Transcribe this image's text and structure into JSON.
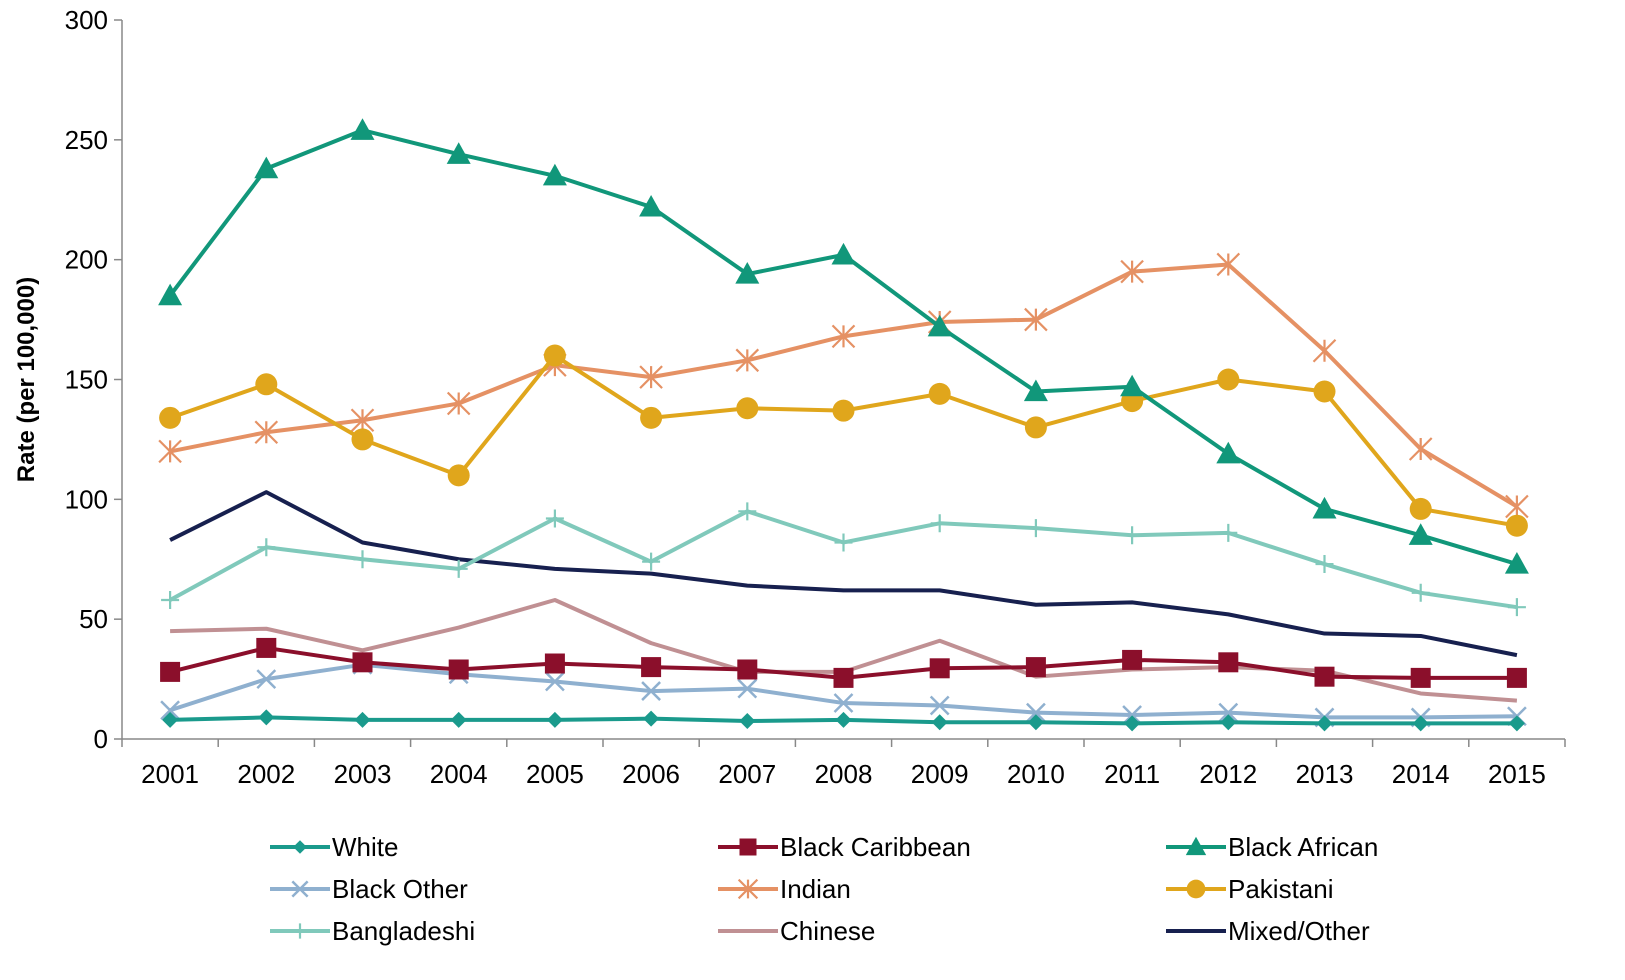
{
  "chart_data": {
    "type": "line",
    "title": "",
    "xlabel": "",
    "ylabel": "Rate (per 100,000)",
    "ylim": [
      0,
      300
    ],
    "yticks": [
      0,
      50,
      100,
      150,
      200,
      250,
      300
    ],
    "grid": false,
    "legend_position": "bottom",
    "categories": [
      "2001",
      "2002",
      "2003",
      "2004",
      "2005",
      "2006",
      "2007",
      "2008",
      "2009",
      "2010",
      "2011",
      "2012",
      "2013",
      "2014",
      "2015"
    ],
    "series": [
      {
        "name": "White",
        "color": "#1a9a8c",
        "marker": "diamond",
        "values": [
          8,
          9,
          8,
          8,
          8,
          8.5,
          7.5,
          8,
          7,
          7,
          6.5,
          7,
          6.5,
          6.5,
          6.5
        ]
      },
      {
        "name": "Black Caribbean",
        "color": "#8b0f2b",
        "marker": "square",
        "values": [
          28,
          38,
          32,
          29,
          31.5,
          30,
          29,
          25.5,
          29.5,
          30,
          33,
          32,
          26,
          25.5,
          25.5
        ]
      },
      {
        "name": "Black African",
        "color": "#11977a",
        "marker": "triangle",
        "values": [
          185,
          238,
          254,
          244,
          235,
          222,
          194,
          202,
          172,
          145,
          147,
          119,
          96,
          85,
          73
        ]
      },
      {
        "name": "Black Other",
        "color": "#8fb0cf",
        "marker": "x",
        "values": [
          12,
          25,
          31,
          27,
          24,
          20,
          21,
          15,
          14,
          11,
          10,
          11,
          9,
          9,
          9.5
        ]
      },
      {
        "name": "Indian",
        "color": "#e59164",
        "marker": "asterisk",
        "values": [
          120,
          128,
          133,
          140,
          156,
          151,
          158,
          168,
          174,
          175,
          195,
          198,
          162,
          121,
          97
        ]
      },
      {
        "name": "Pakistani",
        "color": "#e0a61c",
        "marker": "circle",
        "values": [
          134,
          148,
          125,
          110,
          160,
          134,
          138,
          137,
          144,
          130,
          141,
          150,
          145,
          96,
          89
        ]
      },
      {
        "name": "Bangladeshi",
        "color": "#80c9bb",
        "marker": "plus",
        "values": [
          58,
          80,
          75,
          71,
          92,
          74,
          95,
          82,
          90,
          88,
          85,
          86,
          73,
          61,
          55
        ]
      },
      {
        "name": "Chinese",
        "color": "#c09093",
        "marker": "none",
        "values": [
          45,
          46,
          37,
          46.5,
          58,
          40,
          28,
          28,
          41,
          26,
          29,
          30,
          28.5,
          19,
          16
        ]
      },
      {
        "name": "Mixed/Other",
        "color": "#17204f",
        "marker": "none",
        "values": [
          83,
          103,
          82,
          75,
          71,
          69,
          64,
          62,
          62,
          56,
          57,
          52,
          44,
          43,
          35
        ]
      }
    ]
  }
}
